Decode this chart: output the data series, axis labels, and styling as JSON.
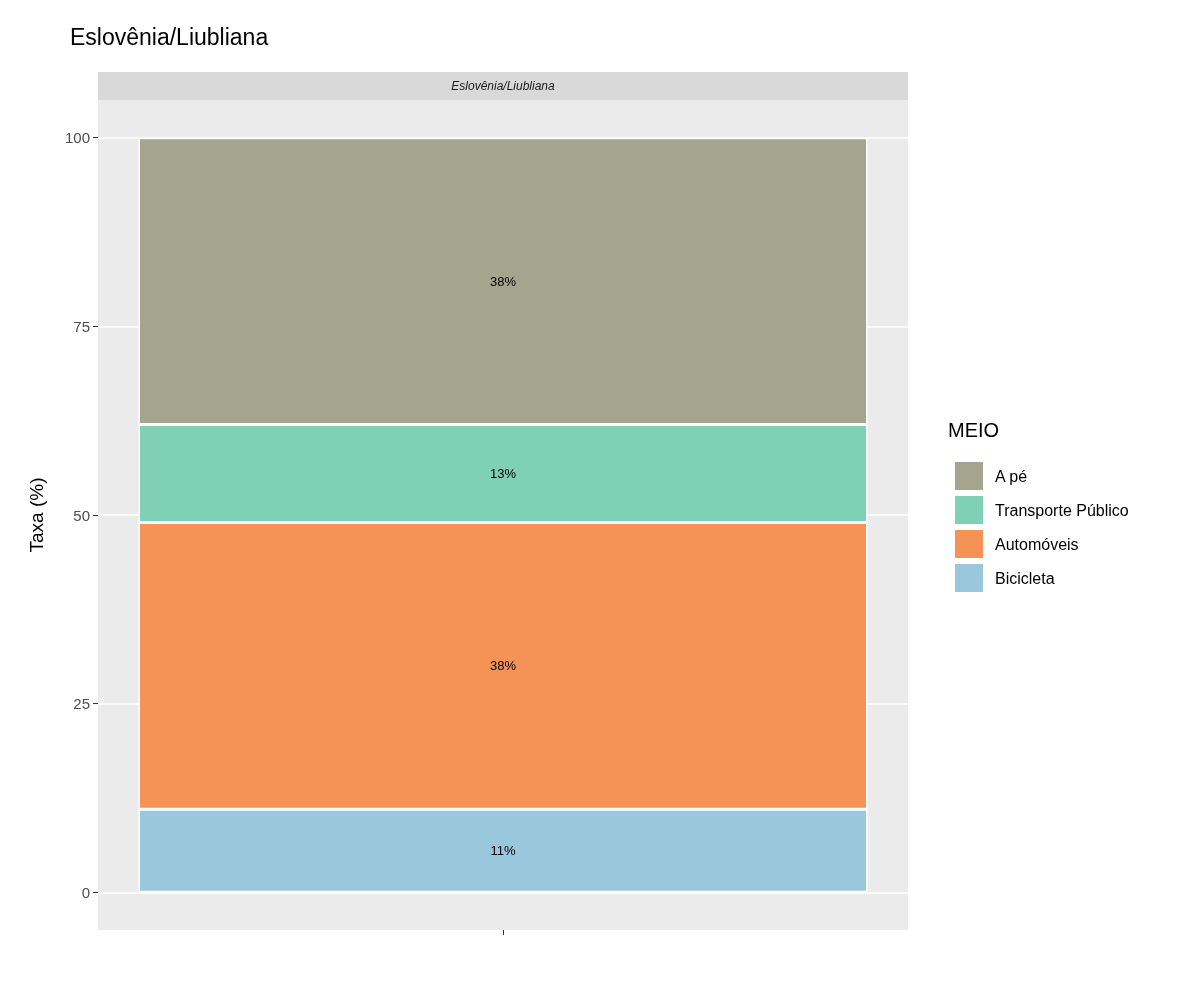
{
  "chart_data": {
    "type": "bar",
    "title": "Eslovênia/Liubliana",
    "ylabel": "Taxa (%)",
    "legend_title": "MEIO",
    "annotations": [
      "Eslovênia/Liubliana"
    ],
    "categories": [
      null
    ],
    "stacked": true,
    "series": [
      {
        "name": "Bicicleta",
        "color": "#99c8dd",
        "values": [
          11
        ],
        "value_labels": [
          "11%"
        ]
      },
      {
        "name": "Automóveis",
        "color": "#f59356",
        "values": [
          38
        ],
        "value_labels": [
          "38%"
        ]
      },
      {
        "name": "Transporte Público",
        "color": "#7fd1b5",
        "values": [
          13
        ],
        "value_labels": [
          "13%"
        ]
      },
      {
        "name": "A pé",
        "color": "#a5a58d",
        "values": [
          38
        ],
        "value_labels": [
          "38%"
        ]
      }
    ],
    "ylim": [
      -5,
      105
    ],
    "yticks": [
      0,
      25,
      50,
      75,
      100
    ],
    "grid": "y",
    "legend": "right"
  }
}
